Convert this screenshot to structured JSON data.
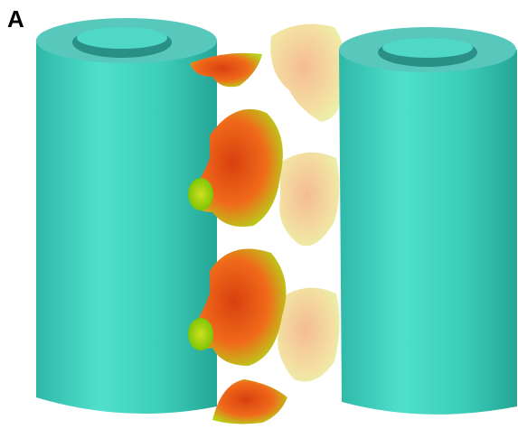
{
  "panel_label": "A"
}
